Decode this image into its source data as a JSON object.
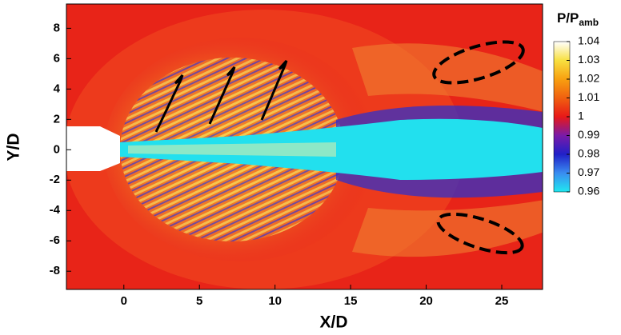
{
  "chart_data": {
    "type": "contour",
    "x_label": "X/D",
    "y_label": "Y/D",
    "xlim": [
      -3.8,
      27.7
    ],
    "ylim": [
      -9.2,
      9.6
    ],
    "xticks": [
      0,
      5,
      10,
      15,
      20,
      25
    ],
    "yticks": [
      -8,
      -6,
      -4,
      -2,
      0,
      2,
      4,
      6,
      8
    ],
    "colorbar": {
      "title": "P/P",
      "title_sub": "amb",
      "clim": [
        0.96,
        1.04
      ],
      "ticks": [
        1.04,
        1.03,
        1.02,
        1.01,
        1,
        0.99,
        0.98,
        0.97,
        0.96
      ],
      "colormap": [
        "#20e8f0",
        "#3a8cf0",
        "#2020c8",
        "#7a1aa8",
        "#e81818",
        "#f06010",
        "#f8a010",
        "#f8e040",
        "#ffffff"
      ]
    }
  }
}
